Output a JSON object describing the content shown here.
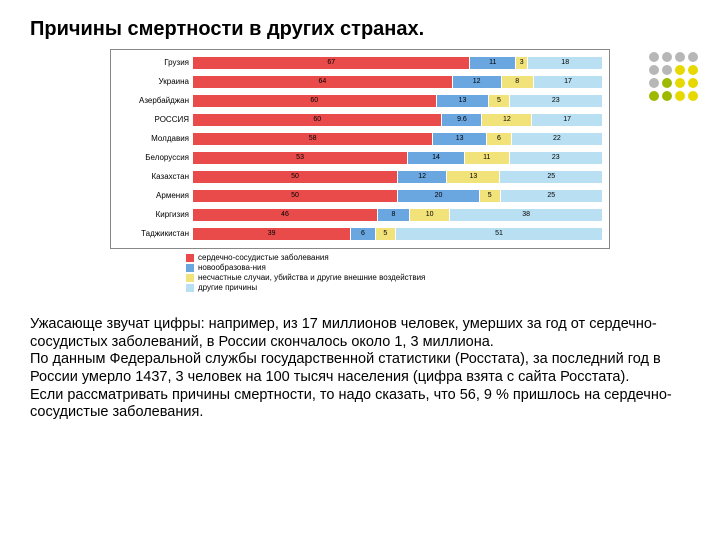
{
  "title": "Причины смертности в других странах.",
  "decor_dots": {
    "rows": [
      [
        "#b7b7b7",
        "#b7b7b7",
        "#b7b7b7",
        "#b7b7b7"
      ],
      [
        "#b7b7b7",
        "#b7b7b7",
        "#e6d800",
        "#e6d800"
      ],
      [
        "#b7b7b7",
        "#9fb800",
        "#e6d800",
        "#e6d800"
      ],
      [
        "#9fb800",
        "#9fb800",
        "#e6d800",
        "#e6d800"
      ]
    ]
  },
  "chart": {
    "type": "stacked-bar-horizontal",
    "series": [
      {
        "name": "сердечно-сосудистые заболевания",
        "color": "#e94b4b"
      },
      {
        "name": "новообразова-ния",
        "color": "#6aa6e0"
      },
      {
        "name": "несчастные случаи, убийства и другие внешние воздействия",
        "color": "#f2e27a"
      },
      {
        "name": "другие причины",
        "color": "#b8dff2"
      }
    ],
    "rows": [
      {
        "label": "Грузия",
        "values": [
          67,
          11,
          3,
          18
        ]
      },
      {
        "label": "Украина",
        "values": [
          64,
          12,
          8,
          17
        ]
      },
      {
        "label": "Азербайджан",
        "values": [
          60,
          13,
          5,
          23
        ]
      },
      {
        "label": "РОССИЯ",
        "values": [
          60,
          9.6,
          12,
          17
        ]
      },
      {
        "label": "Молдавия",
        "values": [
          58,
          13,
          6,
          22
        ]
      },
      {
        "label": "Белоруссия",
        "values": [
          53,
          14,
          11,
          23
        ]
      },
      {
        "label": "Казахстан",
        "values": [
          50,
          12,
          13,
          25
        ]
      },
      {
        "label": "Армения",
        "values": [
          50,
          20,
          5,
          25
        ]
      },
      {
        "label": "Киргизия",
        "values": [
          46,
          8,
          10,
          38
        ]
      },
      {
        "label": "Таджикистан",
        "values": [
          39,
          6,
          5,
          51
        ]
      }
    ],
    "xlim": [
      0,
      100
    ],
    "background_color": "#ffffff",
    "border_color": "#888888",
    "label_fontsize": 8,
    "value_fontsize": 7
  },
  "paragraphs": [
    "Ужасающе звучат цифры: например, из 17 миллионов человек, умерших за год от сердечно-сосудистых заболеваний, в России скончалось около 1, 3 миллиона.",
    "По данным Федеральной службы государственной статистики (Росстата), за последний год в России умерло 1437, 3 человек на 100 тысяч населения (цифра взята с сайта Росстата).",
    "Если рассматривать причины смертности, то надо сказать, что 56, 9 % пришлось на сердечно-сосудистые заболевания."
  ]
}
